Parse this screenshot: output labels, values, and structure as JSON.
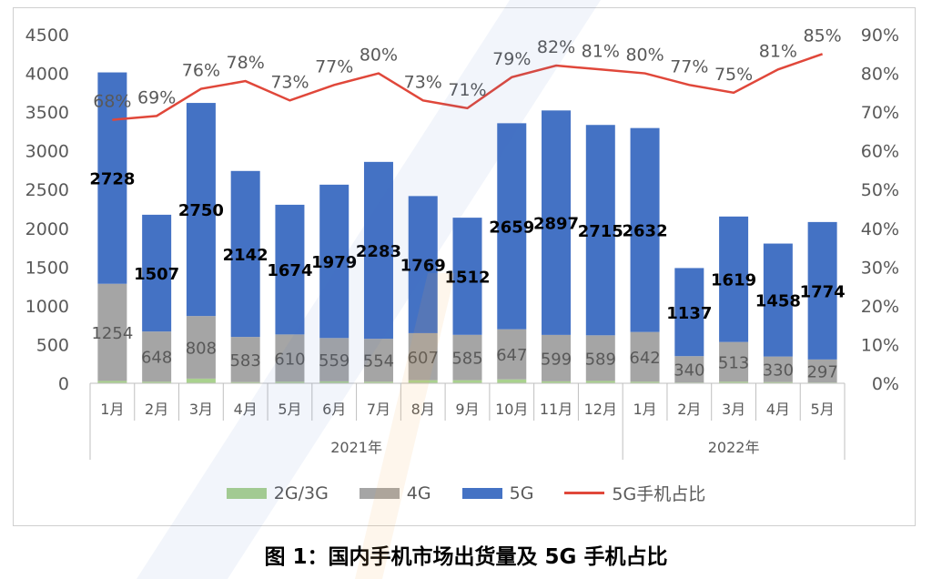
{
  "chart_data": {
    "type": "bar",
    "stacked": true,
    "title": "",
    "caption": "图 1：国内手机市场出货量及 5G 手机占比",
    "categories": [
      "1月",
      "2月",
      "3月",
      "4月",
      "5月",
      "6月",
      "7月",
      "8月",
      "9月",
      "10月",
      "11月",
      "12月",
      "1月",
      "2月",
      "3月",
      "4月",
      "5月"
    ],
    "groups": [
      {
        "label": "2021年",
        "count": 12
      },
      {
        "label": "2022年",
        "count": 5
      }
    ],
    "ylim": [
      0,
      4500
    ],
    "yticks": [
      "0",
      "500",
      "1000",
      "1500",
      "2000",
      "2500",
      "3000",
      "3500",
      "4000",
      "4500"
    ],
    "y2lim": [
      0,
      90
    ],
    "y2ticks": [
      "0%",
      "10%",
      "20%",
      "30%",
      "40%",
      "50%",
      "60%",
      "70%",
      "80%",
      "90%"
    ],
    "series": [
      {
        "name": "2G/3G",
        "kind": "bar",
        "color": "#a9d18e",
        "values": [
          30,
          20,
          60,
          15,
          20,
          25,
          20,
          40,
          40,
          50,
          25,
          30,
          20,
          10,
          20,
          15,
          10
        ]
      },
      {
        "name": "4G",
        "kind": "bar",
        "color": "#a5a5a5",
        "values": [
          1254,
          648,
          808,
          583,
          610,
          559,
          554,
          607,
          585,
          647,
          599,
          589,
          642,
          340,
          513,
          330,
          297
        ]
      },
      {
        "name": "5G",
        "kind": "bar",
        "color": "#4472c4",
        "values": [
          2728,
          1507,
          2750,
          2142,
          1674,
          1979,
          2283,
          1769,
          1512,
          2659,
          2897,
          2715,
          2632,
          1137,
          1619,
          1458,
          1774
        ]
      },
      {
        "name": "5G手机占比",
        "kind": "line",
        "axis": "right",
        "color": "#e0473a",
        "values": [
          68,
          69,
          76,
          78,
          73,
          77,
          80,
          73,
          71,
          79,
          82,
          81,
          80,
          77,
          75,
          81,
          85
        ],
        "labels": [
          "68%",
          "69%",
          "76%",
          "78%",
          "73%",
          "77%",
          "80%",
          "73%",
          "71%",
          "79%",
          "82%",
          "81%",
          "80%",
          "77%",
          "75%",
          "81%",
          "85%"
        ]
      }
    ],
    "legend": "bottom",
    "grid": false
  }
}
